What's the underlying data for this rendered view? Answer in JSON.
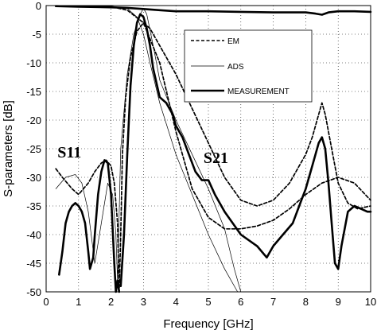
{
  "chart_data": {
    "type": "line",
    "title": "",
    "xlabel": "Frequency [GHz]",
    "ylabel": "S-parameters [dB]",
    "xlim": [
      0,
      10
    ],
    "ylim": [
      -50,
      0
    ],
    "xticks": [
      0,
      1,
      2,
      3,
      4,
      5,
      6,
      7,
      8,
      9,
      10
    ],
    "yticks": [
      0,
      -5,
      -10,
      -15,
      -20,
      -25,
      -30,
      -35,
      -40,
      -45,
      -50
    ],
    "grid": true,
    "legend_position": "top-right",
    "annotations": [
      {
        "text": "S11",
        "x": 0.35,
        "y": -26.5
      },
      {
        "text": "S21",
        "x": 4.85,
        "y": -27.5
      }
    ],
    "series": [
      {
        "name": "EM",
        "style": "dashed",
        "groups": [
          {
            "x": [
              0.3,
              0.5,
              0.8,
              1.0,
              1.3,
              1.5,
              1.7,
              1.85,
              2.0,
              2.1,
              2.2,
              2.25,
              2.3,
              2.35,
              2.45,
              2.6,
              2.8,
              3.0,
              3.2,
              3.5,
              4.0,
              4.5,
              5.0,
              5.5,
              6.0,
              6.5,
              7.0,
              7.5,
              7.8,
              8.0,
              8.2,
              8.4,
              8.5,
              8.6,
              8.8,
              9.0,
              9.3,
              9.6,
              10.0
            ],
            "y": [
              -28.5,
              -30,
              -32,
              -33,
              -31,
              -29,
              -27.5,
              -27,
              -28,
              -31,
              -38,
              -50,
              -40,
              -26,
              -16,
              -9,
              -4.5,
              -3,
              -4,
              -7,
              -12,
              -18,
              -24,
              -30,
              -34,
              -35,
              -34,
              -31,
              -28,
              -26,
              -23,
              -19,
              -17,
              -19,
              -25,
              -31,
              -34.5,
              -35.5,
              -35
            ]
          },
          {
            "x": [
              0.3,
              1.0,
              2.0,
              2.5,
              3.0,
              3.5,
              4.0,
              4.5,
              5.0,
              5.5,
              6.0,
              6.5,
              7.0,
              7.5,
              8.0,
              8.5,
              9.0,
              9.5,
              10.0
            ],
            "y": [
              -0.1,
              -0.1,
              -0.2,
              -0.8,
              -3,
              -10,
              -22,
              -32,
              -37,
              -39,
              -39,
              -38.5,
              -37.5,
              -35.5,
              -33,
              -31,
              -30,
              -31,
              -34
            ]
          }
        ]
      },
      {
        "name": "ADS",
        "style": "thin",
        "groups": [
          {
            "x": [
              0.3,
              0.6,
              0.9,
              1.1,
              1.3,
              1.5,
              1.7,
              1.9,
              2.05,
              2.15,
              2.2,
              2.3,
              2.5,
              2.7,
              2.9,
              3.0,
              3.1,
              3.3,
              3.5,
              4.0,
              4.5,
              5.0,
              5.5,
              5.8,
              6.0
            ],
            "y": [
              -32,
              -30,
              -29.5,
              -31,
              -36,
              -45,
              -38,
              -31,
              -33,
              -40,
              -48,
              -25,
              -12,
              -5,
              -1.5,
              -0.5,
              -1.5,
              -7,
              -13,
              -20,
              -26,
              -32,
              -39,
              -46,
              -50
            ]
          },
          {
            "x": [
              0.3,
              1.0,
              2.0,
              2.5,
              2.8,
              3.0,
              3.2,
              3.5,
              4.0,
              4.5,
              5.0,
              5.5,
              5.9
            ],
            "y": [
              -0.02,
              -0.05,
              -0.1,
              -0.5,
              -2,
              -5,
              -10,
              -17,
              -26,
              -33,
              -40,
              -46,
              -50
            ]
          }
        ]
      },
      {
        "name": "MEASUREMENT",
        "style": "thick",
        "groups": [
          {
            "x": [
              0.4,
              0.5,
              0.6,
              0.7,
              0.8,
              0.9,
              1.0,
              1.1,
              1.2,
              1.3,
              1.35,
              1.45,
              1.5,
              1.6,
              1.7,
              1.8,
              1.9,
              2.0,
              2.1,
              2.15,
              2.2,
              2.25
            ],
            "y": [
              -47,
              -43,
              -38,
              -36,
              -35,
              -34.5,
              -35,
              -36,
              -38,
              -43,
              -46,
              -44,
              -40,
              -33,
              -29,
              -27,
              -27.5,
              -33,
              -45,
              -50,
              -48,
              -50
            ]
          },
          {
            "x": [
              2.3,
              2.4,
              2.5,
              2.6,
              2.7,
              2.8,
              2.9,
              3.0,
              3.1,
              3.2,
              3.3,
              3.5,
              3.7,
              3.9,
              4.0,
              4.2,
              4.4,
              4.6,
              4.8,
              5.0,
              5.2,
              5.5,
              6.0,
              6.5,
              6.8,
              7.0,
              7.3,
              7.6,
              7.8,
              8.0,
              8.2,
              8.4,
              8.5,
              8.6,
              8.7,
              8.8,
              8.9,
              9.0,
              9.1,
              9.3,
              9.5,
              9.7,
              9.9,
              10.0
            ],
            "y": [
              -49,
              -40,
              -26,
              -14,
              -7,
              -3,
              -1.5,
              -2,
              -4,
              -7,
              -11,
              -16,
              -17,
              -19,
              -21,
              -23,
              -26,
              -29,
              -30.5,
              -30.5,
              -33,
              -36,
              -40,
              -42,
              -44,
              -42,
              -40,
              -38,
              -35,
              -32,
              -28,
              -24,
              -23,
              -25,
              -31,
              -38,
              -45,
              -46,
              -42,
              -36,
              -35,
              -35.5,
              -36,
              -36
            ]
          },
          {
            "x": [
              0.3,
              1.0,
              2.0,
              2.5,
              3.0,
              3.5,
              4.0,
              5.0,
              6.0,
              7.0,
              8.0,
              8.3,
              8.5,
              8.7,
              9.0,
              9.5,
              10.0
            ],
            "y": [
              -0.1,
              -0.2,
              -0.3,
              -0.4,
              -0.6,
              -0.8,
              -1.0,
              -1.0,
              -1.1,
              -1.2,
              -1.2,
              -1.4,
              -1.6,
              -1.2,
              -1.0,
              -1.0,
              -1.1
            ]
          }
        ]
      }
    ]
  }
}
